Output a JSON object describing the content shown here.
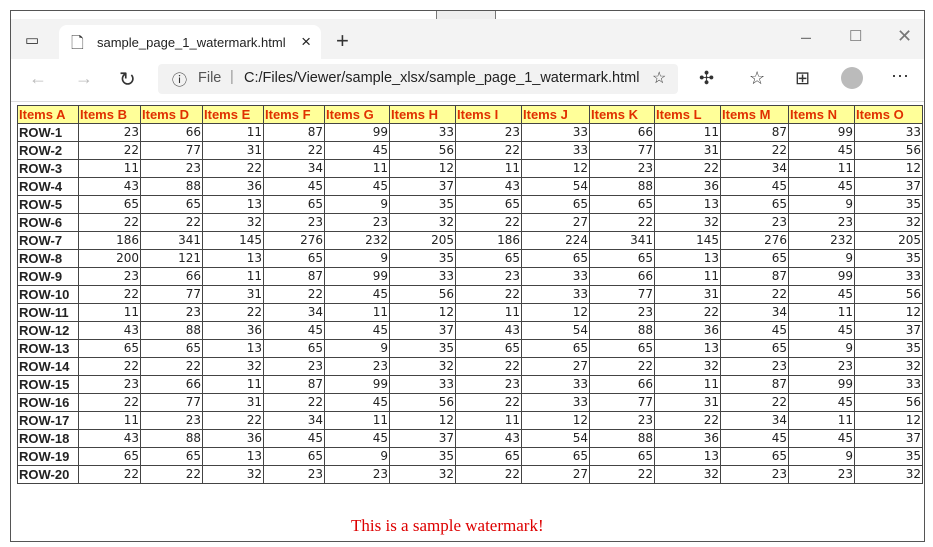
{
  "browser": {
    "tab_title": "sample_page_1_watermark.html",
    "url_prefix": "File",
    "url": "C:/Files/Viewer/sample_xlsx/sample_page_1_watermark.html"
  },
  "table": {
    "headers": [
      "Items A",
      "Items B",
      "Items D",
      "Items E",
      "Items F",
      "Items G",
      "Items H",
      "Items I",
      "Items J",
      "Items K",
      "Items L",
      "Items M",
      "Items N",
      "Items O"
    ],
    "rows": [
      [
        "ROW-1",
        23,
        66,
        11,
        87,
        99,
        33,
        23,
        33,
        66,
        11,
        87,
        99,
        33
      ],
      [
        "ROW-2",
        22,
        77,
        31,
        22,
        45,
        56,
        22,
        33,
        77,
        31,
        22,
        45,
        56
      ],
      [
        "ROW-3",
        11,
        23,
        22,
        34,
        11,
        12,
        11,
        12,
        23,
        22,
        34,
        11,
        12
      ],
      [
        "ROW-4",
        43,
        88,
        36,
        45,
        45,
        37,
        43,
        54,
        88,
        36,
        45,
        45,
        37
      ],
      [
        "ROW-5",
        65,
        65,
        13,
        65,
        9,
        35,
        65,
        65,
        65,
        13,
        65,
        9,
        35
      ],
      [
        "ROW-6",
        22,
        22,
        32,
        23,
        23,
        32,
        22,
        27,
        22,
        32,
        23,
        23,
        32
      ],
      [
        "ROW-7",
        186,
        341,
        145,
        276,
        232,
        205,
        186,
        224,
        341,
        145,
        276,
        232,
        205
      ],
      [
        "ROW-8",
        200,
        121,
        13,
        65,
        9,
        35,
        65,
        65,
        65,
        13,
        65,
        9,
        35
      ],
      [
        "ROW-9",
        23,
        66,
        11,
        87,
        99,
        33,
        23,
        33,
        66,
        11,
        87,
        99,
        33
      ],
      [
        "ROW-10",
        22,
        77,
        31,
        22,
        45,
        56,
        22,
        33,
        77,
        31,
        22,
        45,
        56
      ],
      [
        "ROW-11",
        11,
        23,
        22,
        34,
        11,
        12,
        11,
        12,
        23,
        22,
        34,
        11,
        12
      ],
      [
        "ROW-12",
        43,
        88,
        36,
        45,
        45,
        37,
        43,
        54,
        88,
        36,
        45,
        45,
        37
      ],
      [
        "ROW-13",
        65,
        65,
        13,
        65,
        9,
        35,
        65,
        65,
        65,
        13,
        65,
        9,
        35
      ],
      [
        "ROW-14",
        22,
        22,
        32,
        23,
        23,
        32,
        22,
        27,
        22,
        32,
        23,
        23,
        32
      ],
      [
        "ROW-15",
        23,
        66,
        11,
        87,
        99,
        33,
        23,
        33,
        66,
        11,
        87,
        99,
        33
      ],
      [
        "ROW-16",
        22,
        77,
        31,
        22,
        45,
        56,
        22,
        33,
        77,
        31,
        22,
        45,
        56
      ],
      [
        "ROW-17",
        11,
        23,
        22,
        34,
        11,
        12,
        11,
        12,
        23,
        22,
        34,
        11,
        12
      ],
      [
        "ROW-18",
        43,
        88,
        36,
        45,
        45,
        37,
        43,
        54,
        88,
        36,
        45,
        45,
        37
      ],
      [
        "ROW-19",
        65,
        65,
        13,
        65,
        9,
        35,
        65,
        65,
        65,
        13,
        65,
        9,
        35
      ],
      [
        "ROW-20",
        22,
        22,
        32,
        23,
        23,
        32,
        22,
        27,
        22,
        32,
        23,
        23,
        32
      ]
    ]
  },
  "watermark": "This is a sample watermark!",
  "colors": {
    "header_bg": "#ffff99",
    "header_text": "#e03000",
    "watermark": "#dd0000"
  }
}
